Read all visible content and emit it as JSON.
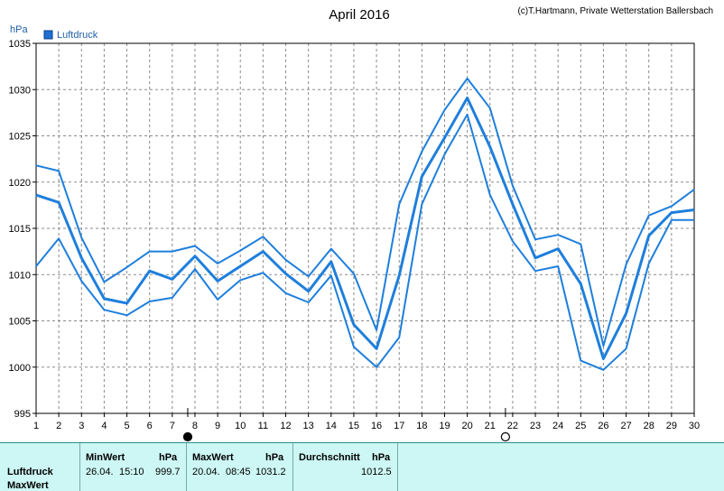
{
  "chart_data": {
    "type": "line",
    "title": "April 2016",
    "credit": "(c)T.Hartmann, Private Wetterstation Ballersbach",
    "y_unit": "hPa",
    "legend": [
      "Luftdruck"
    ],
    "ylim": [
      995,
      1035
    ],
    "y_ticks": [
      995,
      1000,
      1005,
      1010,
      1015,
      1020,
      1025,
      1030,
      1035
    ],
    "x_ticks": [
      1,
      2,
      3,
      4,
      5,
      6,
      7,
      8,
      9,
      10,
      11,
      12,
      13,
      14,
      15,
      16,
      17,
      18,
      19,
      20,
      21,
      22,
      23,
      24,
      25,
      26,
      27,
      28,
      29,
      30
    ],
    "xlim": [
      1,
      30
    ],
    "grid": true,
    "colors": {
      "line": "#1e7fdc",
      "legend_box": "#1e6fd6"
    },
    "series": [
      {
        "name": "Luftdruck",
        "role": "avg",
        "values": [
          1018.6,
          1017.8,
          1011.8,
          1007.4,
          1006.9,
          1010.4,
          1009.5,
          1012.0,
          1009.3,
          1010.9,
          1012.5,
          1010.1,
          1008.2,
          1011.4,
          1004.6,
          1002.0,
          1009.9,
          1020.6,
          1024.8,
          1029.1,
          1023.8,
          1017.6,
          1011.8,
          1012.8,
          1009.0,
          1000.9,
          1005.8,
          1014.2,
          1016.7,
          1017.0
        ]
      },
      {
        "role": "max",
        "values": [
          1021.8,
          1021.2,
          1014.0,
          1009.2,
          1010.8,
          1012.5,
          1012.5,
          1013.1,
          1011.2,
          1012.6,
          1014.1,
          1011.6,
          1009.8,
          1012.8,
          1010.1,
          1004.0,
          1017.6,
          1023.3,
          1027.8,
          1031.2,
          1028.0,
          1019.6,
          1013.8,
          1014.3,
          1013.3,
          1002.3,
          1011.1,
          1016.4,
          1017.4,
          1019.2
        ]
      },
      {
        "role": "min",
        "values": [
          1010.9,
          1013.9,
          1009.3,
          1006.2,
          1005.6,
          1007.1,
          1007.5,
          1010.6,
          1007.3,
          1009.4,
          1010.2,
          1008.0,
          1007.0,
          1009.9,
          1002.2,
          1000.0,
          1003.2,
          1017.6,
          1023.0,
          1027.3,
          1018.6,
          1013.6,
          1010.4,
          1010.9,
          1000.7,
          999.7,
          1002.0,
          1011.2,
          1015.9,
          1015.9
        ]
      }
    ],
    "markers": [
      {
        "day": 8,
        "label": "full moon",
        "symbol": "●"
      },
      {
        "day": 22,
        "label": "new moon",
        "symbol": "○"
      }
    ]
  },
  "stats": {
    "row_label": "Luftdruck",
    "next_row_label": "MaxWert",
    "min_header": "MinWert",
    "max_header": "MaxWert",
    "avg_header": "Durchschnitt",
    "unit": "hPa",
    "min_date": "26.04.",
    "min_time": "15:10",
    "min_value": "999.7",
    "max_date": "20.04.",
    "max_time": "08:45",
    "max_value": "1031.2",
    "avg_value": "1012.5"
  }
}
